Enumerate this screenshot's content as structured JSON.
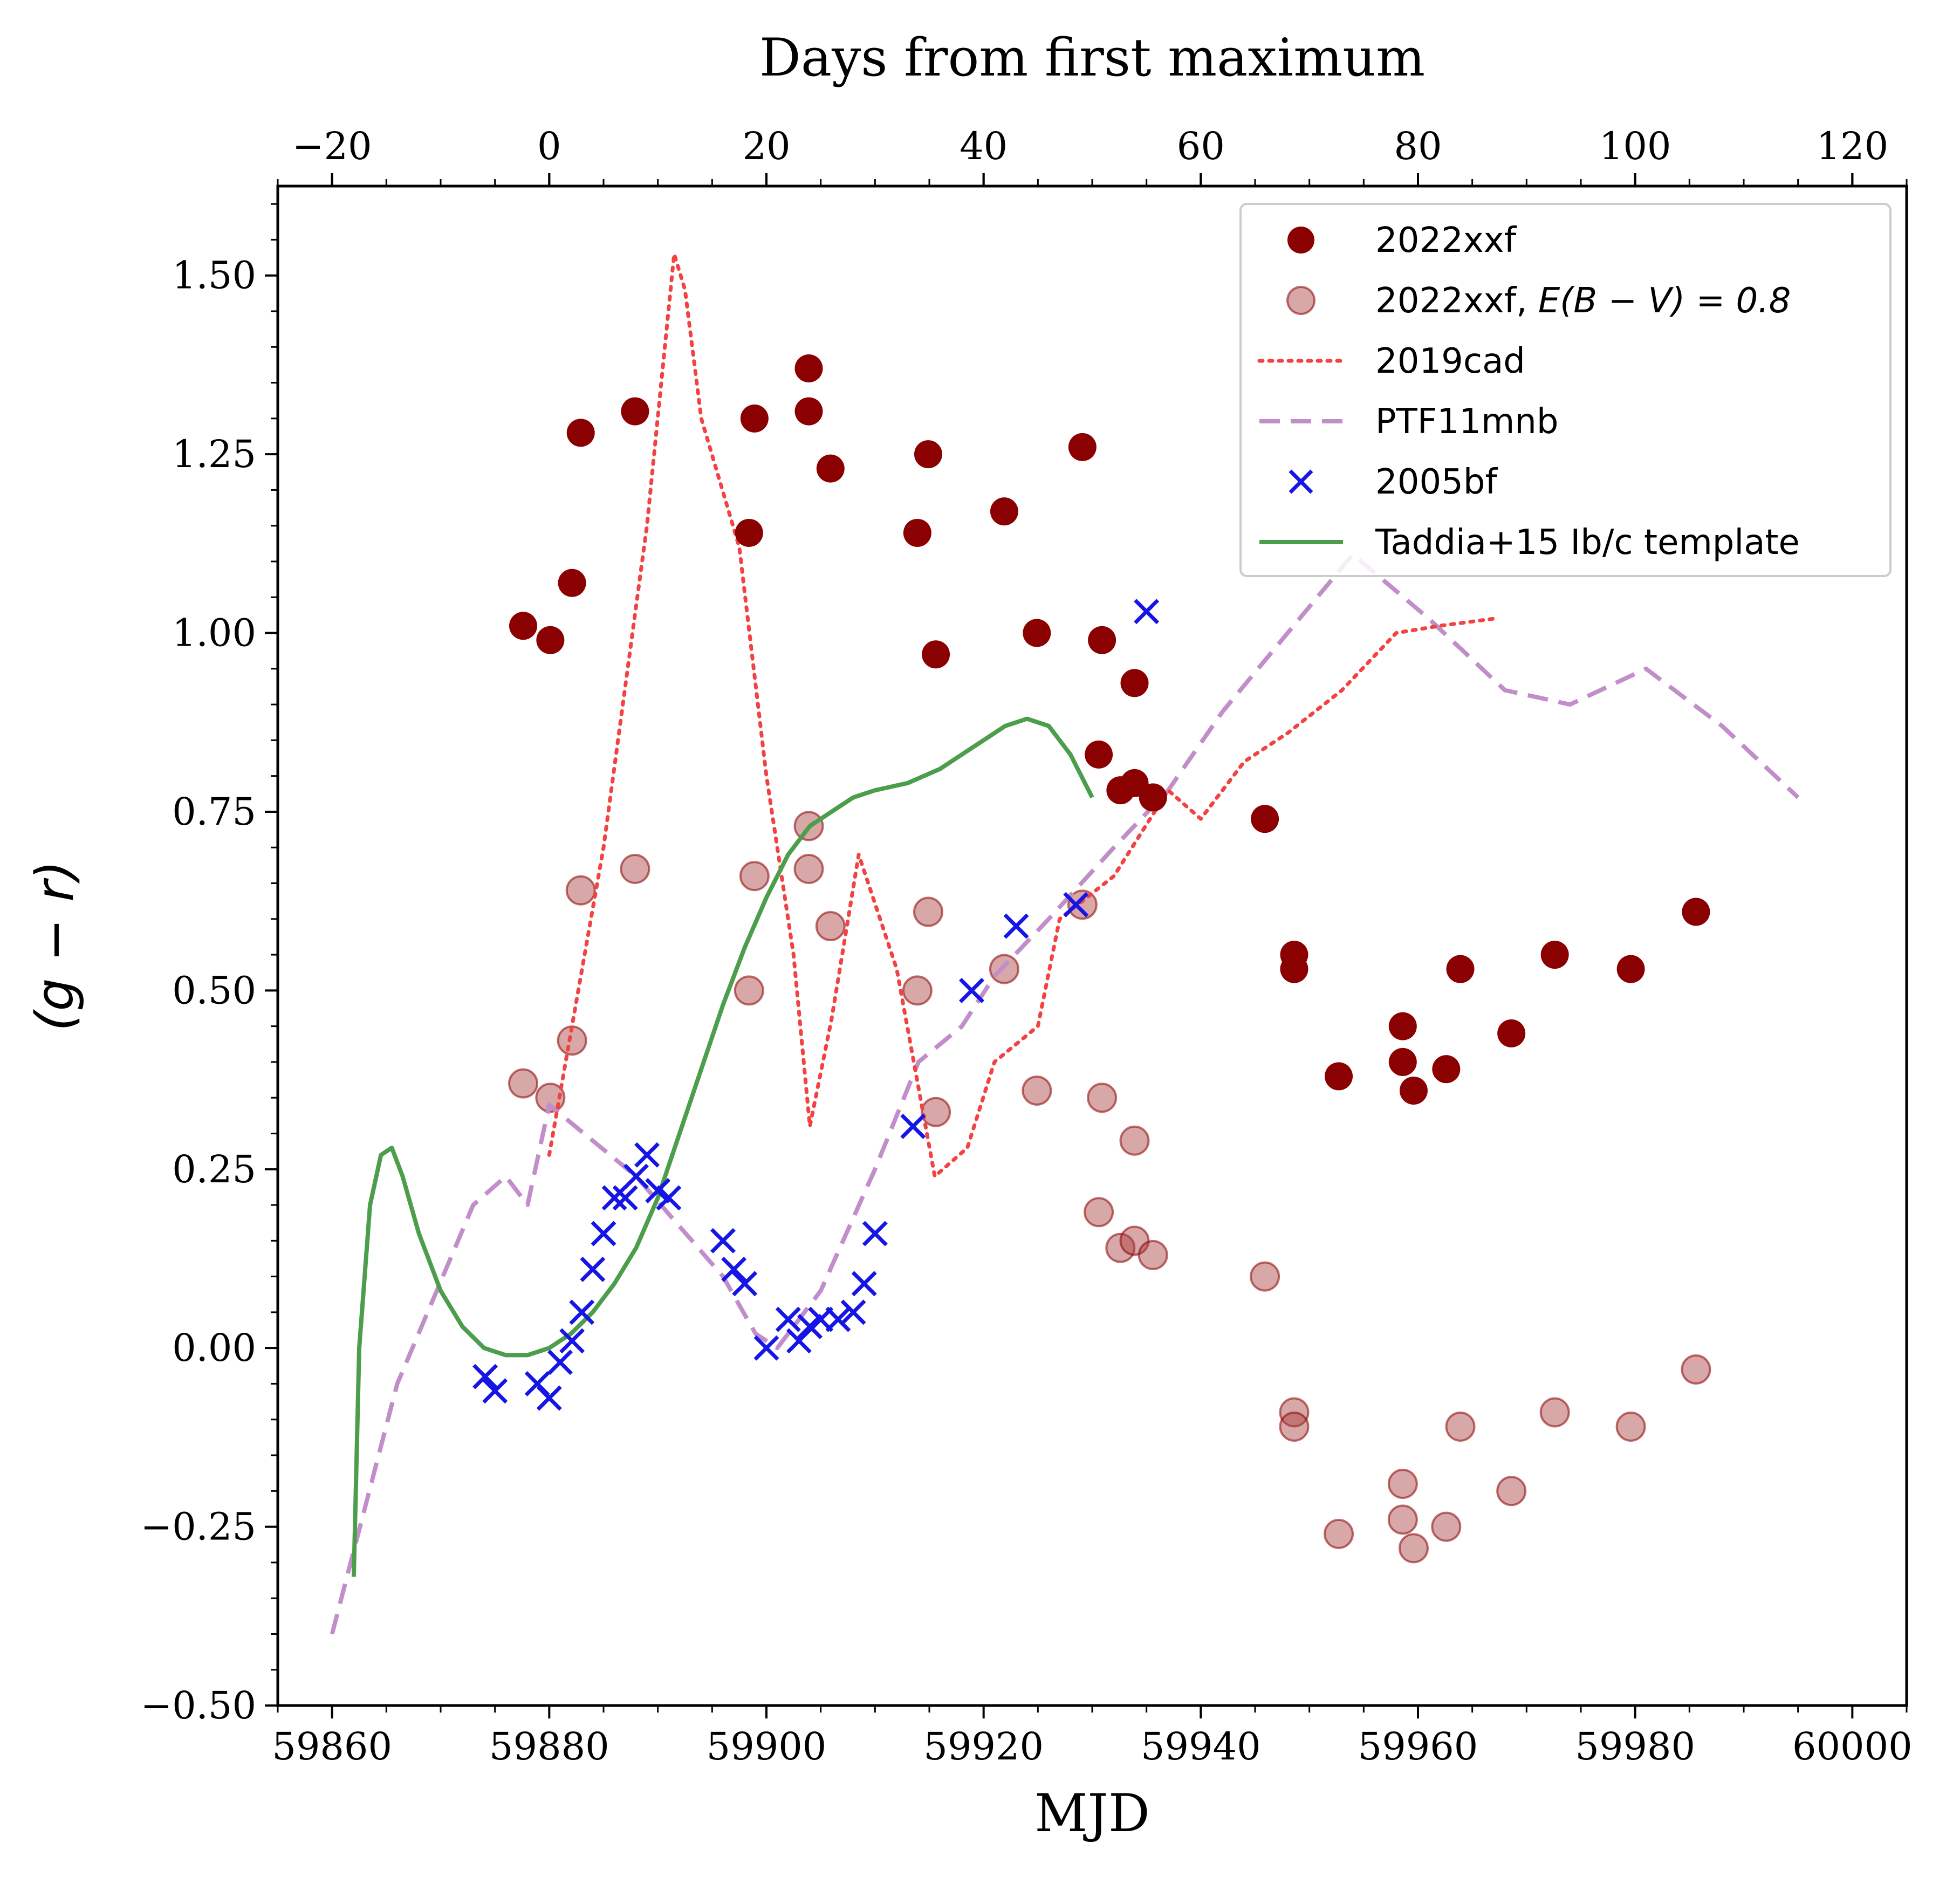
{
  "chart_data": {
    "type": "scatter",
    "xlabel": "MJD",
    "ylabel": "(g − r)",
    "top_xlabel": "Days from first maximum",
    "xlim": [
      59855,
      60005
    ],
    "ylim": [
      -0.5,
      1.625
    ],
    "x_ticks": [
      59860,
      59880,
      59900,
      59920,
      59940,
      59960,
      59980,
      60000
    ],
    "y_ticks": [
      -0.5,
      -0.25,
      0.0,
      0.25,
      0.5,
      0.75,
      1.0,
      1.25,
      1.5
    ],
    "y_tick_labels": [
      "−0.50",
      "−0.25",
      "0.00",
      "0.25",
      "0.50",
      "0.75",
      "1.00",
      "1.25",
      "1.50"
    ],
    "top_axis_offset_mjd": 59880,
    "top_ticks": [
      -20,
      0,
      20,
      40,
      60,
      80,
      100,
      120
    ],
    "top_tick_labels": [
      "−20",
      "0",
      "20",
      "40",
      "60",
      "80",
      "100",
      "120"
    ],
    "legend_position": "upper right",
    "grid": false,
    "series": [
      {
        "name": "2022xxf",
        "legend_label": "2022xxf",
        "kind": "scatter-circle",
        "color": "#8b0000",
        "opacity": 1.0,
        "points": [
          [
            59877.6,
            1.01
          ],
          [
            59880.1,
            0.99
          ],
          [
            59882.1,
            1.07
          ],
          [
            59882.9,
            1.28
          ],
          [
            59887.9,
            1.31
          ],
          [
            59898.4,
            1.14
          ],
          [
            59898.9,
            1.3
          ],
          [
            59903.9,
            1.37
          ],
          [
            59903.9,
            1.31
          ],
          [
            59905.9,
            1.23
          ],
          [
            59913.9,
            1.14
          ],
          [
            59914.9,
            1.25
          ],
          [
            59915.6,
            0.97
          ],
          [
            59921.9,
            1.17
          ],
          [
            59924.9,
            1.0
          ],
          [
            59929.1,
            1.26
          ],
          [
            59930.9,
            0.99
          ],
          [
            59930.6,
            0.83
          ],
          [
            59932.6,
            0.78
          ],
          [
            59933.9,
            0.79
          ],
          [
            59933.9,
            0.93
          ],
          [
            59935.6,
            0.77
          ],
          [
            59945.9,
            0.74
          ],
          [
            59948.6,
            0.55
          ],
          [
            59948.6,
            0.53
          ],
          [
            59952.7,
            0.38
          ],
          [
            59958.6,
            0.45
          ],
          [
            59958.6,
            0.4
          ],
          [
            59959.6,
            0.36
          ],
          [
            59962.6,
            0.39
          ],
          [
            59963.9,
            0.53
          ],
          [
            59968.6,
            0.44
          ],
          [
            59972.6,
            0.55
          ],
          [
            59979.6,
            0.53
          ],
          [
            59985.6,
            0.61
          ]
        ]
      },
      {
        "name": "2022xxf, E(B−V)=0.8",
        "legend_label_main": "2022xxf, ",
        "legend_label_math": "E(B − V) = 0.8",
        "kind": "scatter-circle",
        "color": "#a83b3b",
        "opacity": 0.45,
        "points": [
          [
            59877.6,
            0.37
          ],
          [
            59880.1,
            0.35
          ],
          [
            59882.1,
            0.43
          ],
          [
            59882.9,
            0.64
          ],
          [
            59887.9,
            0.67
          ],
          [
            59898.4,
            0.5
          ],
          [
            59898.9,
            0.66
          ],
          [
            59903.9,
            0.73
          ],
          [
            59903.9,
            0.67
          ],
          [
            59905.9,
            0.59
          ],
          [
            59913.9,
            0.5
          ],
          [
            59914.9,
            0.61
          ],
          [
            59915.6,
            0.33
          ],
          [
            59921.9,
            0.53
          ],
          [
            59924.9,
            0.36
          ],
          [
            59929.1,
            0.62
          ],
          [
            59930.9,
            0.35
          ],
          [
            59930.6,
            0.19
          ],
          [
            59932.6,
            0.14
          ],
          [
            59933.9,
            0.15
          ],
          [
            59933.9,
            0.29
          ],
          [
            59935.6,
            0.13
          ],
          [
            59945.9,
            0.1
          ],
          [
            59948.6,
            -0.09
          ],
          [
            59948.6,
            -0.11
          ],
          [
            59952.7,
            -0.26
          ],
          [
            59958.6,
            -0.19
          ],
          [
            59958.6,
            -0.24
          ],
          [
            59959.6,
            -0.28
          ],
          [
            59962.6,
            -0.25
          ],
          [
            59963.9,
            -0.11
          ],
          [
            59968.6,
            -0.2
          ],
          [
            59972.6,
            -0.09
          ],
          [
            59979.6,
            -0.11
          ],
          [
            59985.6,
            -0.03
          ]
        ]
      },
      {
        "name": "2019cad",
        "legend_label": "2019cad",
        "kind": "line",
        "dash": "dotted",
        "color": "#f24242",
        "points": [
          [
            59880,
            0.27
          ],
          [
            59885,
            0.7
          ],
          [
            59889,
            1.15
          ],
          [
            59891.5,
            1.53
          ],
          [
            59892.5,
            1.48
          ],
          [
            59894,
            1.3
          ],
          [
            59897.5,
            1.12
          ],
          [
            59900,
            0.8
          ],
          [
            59902.5,
            0.55
          ],
          [
            59904,
            0.31
          ],
          [
            59906,
            0.46
          ],
          [
            59908.5,
            0.69
          ],
          [
            59912,
            0.53
          ],
          [
            59915.5,
            0.24
          ],
          [
            59918.5,
            0.28
          ],
          [
            59921,
            0.4
          ],
          [
            59925,
            0.45
          ],
          [
            59927,
            0.6
          ],
          [
            59932,
            0.66
          ],
          [
            59937,
            0.78
          ],
          [
            59940,
            0.74
          ],
          [
            59944,
            0.82
          ],
          [
            59948,
            0.86
          ],
          [
            59953,
            0.92
          ],
          [
            59958,
            1.0
          ],
          [
            59962,
            1.01
          ],
          [
            59967,
            1.02
          ]
        ]
      },
      {
        "name": "PTF11mnb",
        "legend_label": "PTF11mnb",
        "kind": "line",
        "dash": "dashed",
        "color": "#c18ec9",
        "points": [
          [
            59860,
            -0.4
          ],
          [
            59866,
            -0.05
          ],
          [
            59873,
            0.2
          ],
          [
            59876,
            0.24
          ],
          [
            59878,
            0.2
          ],
          [
            59880,
            0.34
          ],
          [
            59888,
            0.24
          ],
          [
            59896,
            0.1
          ],
          [
            59899,
            0.02
          ],
          [
            59901,
            0.0
          ],
          [
            59905,
            0.08
          ],
          [
            59910,
            0.25
          ],
          [
            59914,
            0.4
          ],
          [
            59918,
            0.45
          ],
          [
            59921,
            0.52
          ],
          [
            59926,
            0.6
          ],
          [
            59932,
            0.7
          ],
          [
            59937,
            0.78
          ],
          [
            59942,
            0.89
          ],
          [
            59948,
            1.0
          ],
          [
            59954,
            1.11
          ],
          [
            59961,
            1.02
          ],
          [
            59968,
            0.92
          ],
          [
            59974,
            0.9
          ],
          [
            59981,
            0.95
          ],
          [
            59988,
            0.87
          ],
          [
            59995,
            0.77
          ]
        ]
      },
      {
        "name": "2005bf",
        "legend_label": "2005bf",
        "kind": "scatter-x",
        "color": "#1515e6",
        "points": [
          [
            59874.1,
            -0.04
          ],
          [
            59875.0,
            -0.06
          ],
          [
            59878.9,
            -0.05
          ],
          [
            59880.0,
            -0.07
          ],
          [
            59881.0,
            -0.02
          ],
          [
            59882.1,
            0.01
          ],
          [
            59883.0,
            0.05
          ],
          [
            59884.0,
            0.11
          ],
          [
            59885.0,
            0.16
          ],
          [
            59886.0,
            0.21
          ],
          [
            59887.0,
            0.21
          ],
          [
            59888.0,
            0.24
          ],
          [
            59889.0,
            0.27
          ],
          [
            59890.0,
            0.22
          ],
          [
            59891.0,
            0.21
          ],
          [
            59896.0,
            0.15
          ],
          [
            59897.0,
            0.11
          ],
          [
            59898.0,
            0.09
          ],
          [
            59900.0,
            0.0
          ],
          [
            59902.0,
            0.04
          ],
          [
            59903.0,
            0.01
          ],
          [
            59904.0,
            0.03
          ],
          [
            59905.0,
            0.04
          ],
          [
            59906.6,
            0.04
          ],
          [
            59908.0,
            0.05
          ],
          [
            59909.0,
            0.09
          ],
          [
            59910.0,
            0.16
          ],
          [
            59913.5,
            0.31
          ],
          [
            59918.9,
            0.5
          ],
          [
            59923.0,
            0.59
          ],
          [
            59928.5,
            0.62
          ],
          [
            59935.0,
            1.03
          ]
        ]
      },
      {
        "name": "Taddia+15 Ib/c template",
        "legend_label": "Taddia+15 Ib/c template",
        "kind": "line",
        "dash": "solid",
        "color": "#4c9e4c",
        "points": [
          [
            59862.0,
            -0.32
          ],
          [
            59862.5,
            0.0
          ],
          [
            59863.5,
            0.2
          ],
          [
            59864.5,
            0.27
          ],
          [
            59865.5,
            0.28
          ],
          [
            59866.5,
            0.24
          ],
          [
            59868,
            0.16
          ],
          [
            59870,
            0.08
          ],
          [
            59872,
            0.03
          ],
          [
            59874,
            0.0
          ],
          [
            59876,
            -0.01
          ],
          [
            59878,
            -0.01
          ],
          [
            59880,
            0.0
          ],
          [
            59882,
            0.02
          ],
          [
            59884,
            0.05
          ],
          [
            59886,
            0.09
          ],
          [
            59888,
            0.14
          ],
          [
            59890,
            0.21
          ],
          [
            59892,
            0.3
          ],
          [
            59894,
            0.39
          ],
          [
            59896,
            0.48
          ],
          [
            59898,
            0.56
          ],
          [
            59900,
            0.63
          ],
          [
            59902,
            0.69
          ],
          [
            59904,
            0.73
          ],
          [
            59906,
            0.75
          ],
          [
            59908,
            0.77
          ],
          [
            59910,
            0.78
          ],
          [
            59913,
            0.79
          ],
          [
            59916,
            0.81
          ],
          [
            59919,
            0.84
          ],
          [
            59922,
            0.87
          ],
          [
            59924,
            0.88
          ],
          [
            59926,
            0.87
          ],
          [
            59928,
            0.83
          ],
          [
            59930,
            0.77
          ]
        ]
      }
    ]
  }
}
